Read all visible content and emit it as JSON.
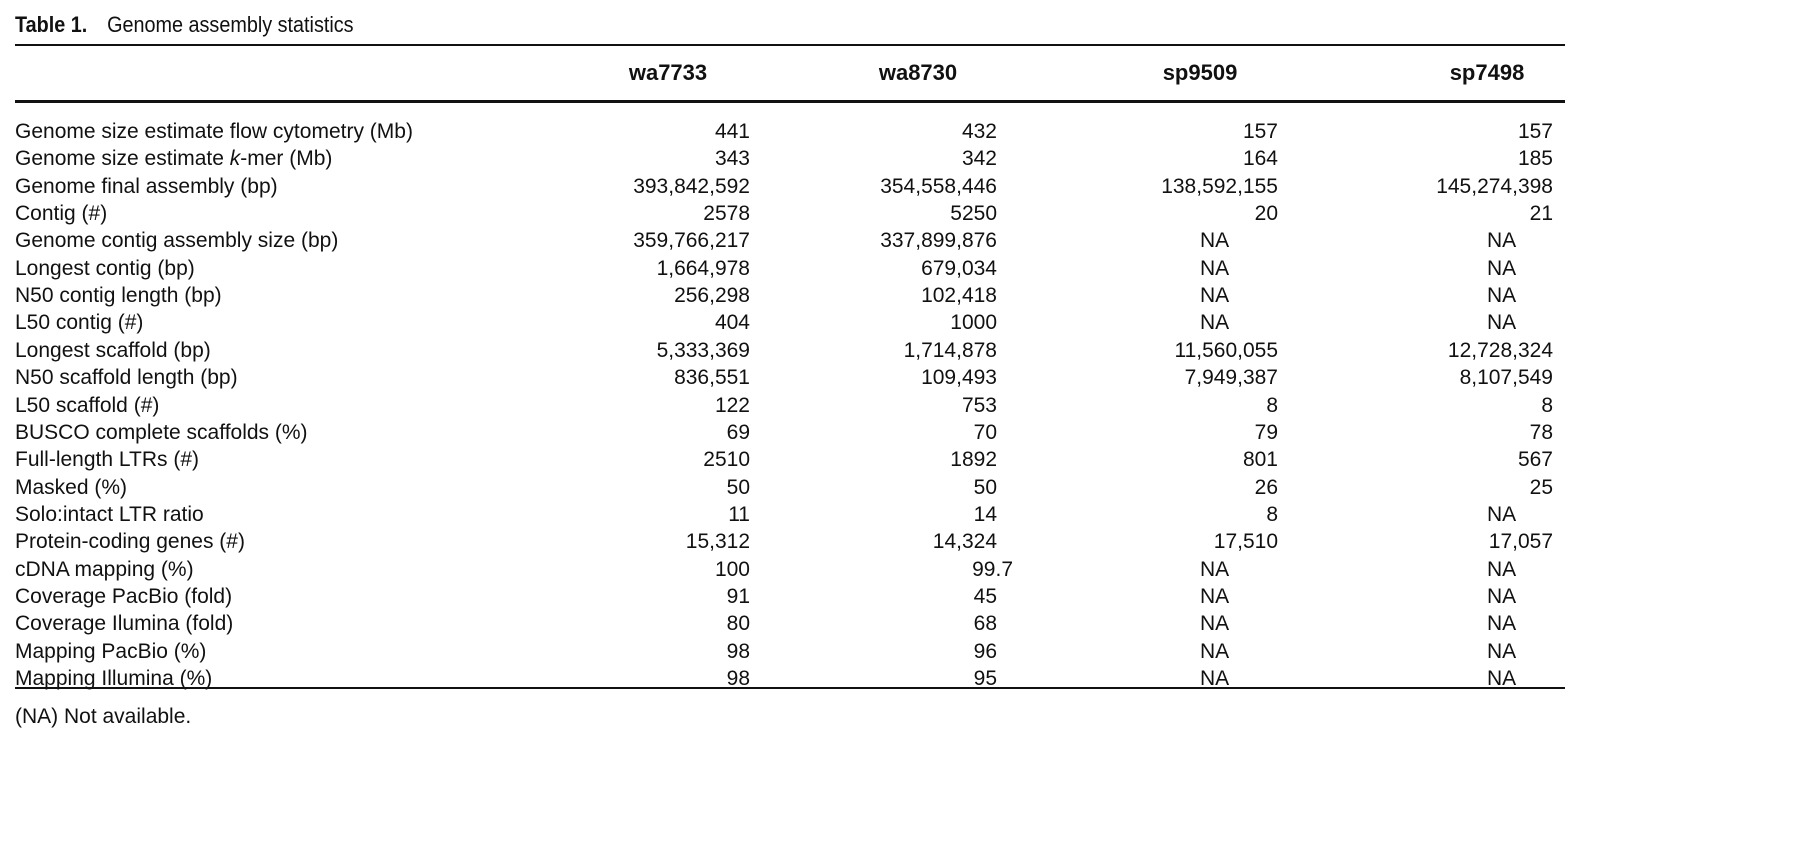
{
  "title": {
    "label": "Table 1.",
    "text": "Genome assembly statistics"
  },
  "columns": [
    "wa7733",
    "wa8730",
    "sp9509",
    "sp7498"
  ],
  "rows": [
    {
      "label": "Genome size estimate flow cytometry (Mb)",
      "values": [
        "441",
        "432",
        "157",
        "157"
      ]
    },
    {
      "label_pre": "Genome size estimate ",
      "label_italic": "k",
      "label_post": "-mer (Mb)",
      "values": [
        "343",
        "342",
        "164",
        "185"
      ]
    },
    {
      "label": "Genome final assembly (bp)",
      "values": [
        "393,842,592",
        "354,558,446",
        "138,592,155",
        "145,274,398"
      ]
    },
    {
      "label": "Contig (#)",
      "values": [
        "2578",
        "5250",
        "20",
        "21"
      ]
    },
    {
      "label": "Genome contig assembly size (bp)",
      "values": [
        "359,766,217",
        "337,899,876",
        "NA",
        "NA"
      ]
    },
    {
      "label": "Longest contig (bp)",
      "values": [
        "1,664,978",
        "679,034",
        "NA",
        "NA"
      ]
    },
    {
      "label": "N50 contig length (bp)",
      "values": [
        "256,298",
        "102,418",
        "NA",
        "NA"
      ]
    },
    {
      "label": "L50 contig (#)",
      "values": [
        "404",
        "1000",
        "NA",
        "NA"
      ]
    },
    {
      "label": "Longest scaffold (bp)",
      "values": [
        "5,333,369",
        "1,714,878",
        "11,560,055",
        "12,728,324"
      ]
    },
    {
      "label": "N50 scaffold length (bp)",
      "values": [
        "836,551",
        "109,493",
        "7,949,387",
        "8,107,549"
      ]
    },
    {
      "label": "L50 scaffold (#)",
      "values": [
        "122",
        "753",
        "8",
        "8"
      ]
    },
    {
      "label": "BUSCO complete scaffolds (%)",
      "values": [
        "69",
        "70",
        "79",
        "78"
      ]
    },
    {
      "label": "Full-length LTRs (#)",
      "values": [
        "2510",
        "1892",
        "801",
        "567"
      ]
    },
    {
      "label": "Masked (%)",
      "values": [
        "50",
        "50",
        "26",
        "25"
      ]
    },
    {
      "label": "Solo:intact LTR ratio",
      "values": [
        "11",
        "14",
        "8",
        "NA"
      ]
    },
    {
      "label": "Protein-coding genes (#)",
      "values": [
        "15,312",
        "14,324",
        "17,510",
        "17,057"
      ]
    },
    {
      "label": "cDNA mapping (%)",
      "values": [
        "100",
        "99.7",
        "NA",
        "NA"
      ]
    },
    {
      "label": "Coverage PacBio (fold)",
      "values": [
        "91",
        "45",
        "NA",
        "NA"
      ]
    },
    {
      "label": "Coverage Ilumina (fold)",
      "values": [
        "80",
        "68",
        "NA",
        "NA"
      ]
    },
    {
      "label": "Mapping PacBio (%)",
      "values": [
        "98",
        "96",
        "NA",
        "NA"
      ]
    },
    {
      "label": "Mapping Illumina (%)",
      "values": [
        "98",
        "95",
        "NA",
        "NA"
      ]
    }
  ],
  "footnote": "(NA) Not available."
}
